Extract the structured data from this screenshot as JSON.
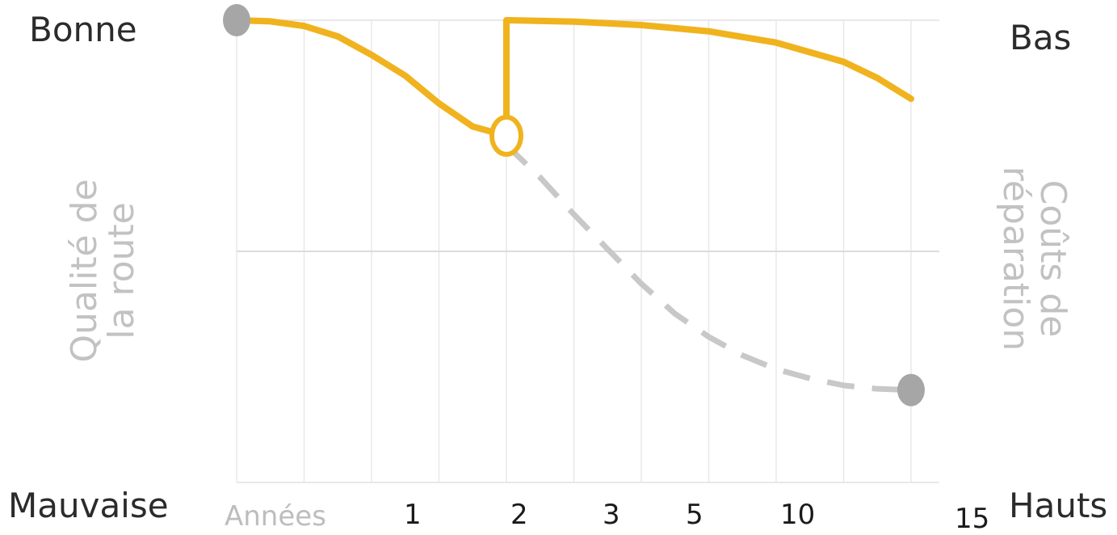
{
  "labels": {
    "top_left": "Bonne",
    "bottom_left": "Mauvaise",
    "top_right": "Bas",
    "bottom_right": "Hauts",
    "left_axis_line1": "Qualité de",
    "left_axis_line2": "la route",
    "right_axis_line1": "Coûts de",
    "right_axis_line2": "réparation"
  },
  "chart_data": {
    "type": "line",
    "x_tick_labels": [
      "Années",
      "1",
      "2",
      "3",
      "5",
      "10",
      "15"
    ],
    "colors": {
      "maintained": "#f0b31e",
      "unmaintained": "#c8c8c8",
      "endpoint": "#a6a6a6",
      "grid": "#e8e8e8"
    },
    "series": [
      {
        "style": "solid",
        "color": "#f0b31e",
        "x": [
          0,
          0.5,
          1,
          1.5,
          2,
          2.5,
          3,
          3.5,
          4
        ],
        "y": [
          100,
          99.5,
          97.5,
          93,
          85,
          76,
          64,
          54,
          50
        ]
      },
      {
        "style": "solid",
        "color": "#f0b31e",
        "x": [
          4,
          4,
          5,
          6,
          7,
          8,
          9,
          9.5,
          10
        ],
        "y": [
          50,
          100,
          99.4,
          97.9,
          95.2,
          90.3,
          82,
          75,
          66
        ]
      },
      {
        "style": "dashed",
        "color": "#c8c8c8",
        "x": [
          4,
          4.5,
          5,
          5.5,
          6,
          6.5,
          7,
          7.5,
          8,
          8.5,
          9,
          9.5,
          10
        ],
        "y": [
          46,
          32,
          16,
          1,
          -14,
          -27,
          -37,
          -45,
          -51,
          -55,
          -58,
          -59.5,
          -60
        ]
      }
    ],
    "markers": [
      {
        "x": 0,
        "y": 100,
        "style": "filled",
        "color": "#a6a6a6"
      },
      {
        "x": 4,
        "y": 50,
        "style": "ring",
        "color": "#f0b31e"
      },
      {
        "x": 10,
        "y": -60,
        "style": "filled",
        "color": "#a6a6a6"
      }
    ],
    "xlim": [
      0,
      10.4
    ],
    "ylim": [
      -100,
      100
    ],
    "grid": true
  }
}
